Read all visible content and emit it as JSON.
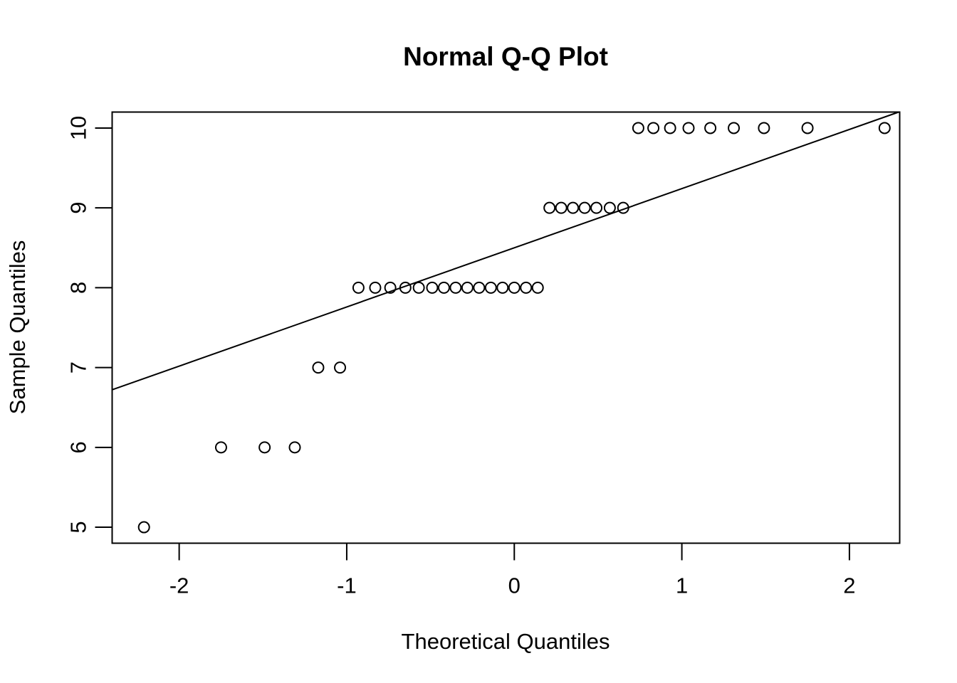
{
  "chart_data": {
    "type": "scatter",
    "title": "Normal Q-Q Plot",
    "xlabel": "Theoretical Quantiles",
    "ylabel": "Sample Quantiles",
    "xlim": [
      -2.4,
      2.3
    ],
    "ylim": [
      4.8,
      10.2
    ],
    "x_ticks": [
      -2,
      -1,
      0,
      1,
      2
    ],
    "x_tick_labels": [
      "-2",
      "-1",
      "0",
      "1",
      "2"
    ],
    "y_ticks": [
      5,
      6,
      7,
      8,
      9,
      10
    ],
    "y_tick_labels": [
      "5",
      "6",
      "7",
      "8",
      "9",
      "10"
    ],
    "grid": false,
    "legend": "none",
    "point_color": "#000000",
    "series": [
      {
        "points": [
          {
            "x": -2.21,
            "y": 5
          },
          {
            "x": -1.75,
            "y": 6
          },
          {
            "x": -1.49,
            "y": 6
          },
          {
            "x": -1.31,
            "y": 6
          },
          {
            "x": -1.17,
            "y": 7
          },
          {
            "x": -1.04,
            "y": 7
          },
          {
            "x": -0.93,
            "y": 8
          },
          {
            "x": -0.83,
            "y": 8
          },
          {
            "x": -0.74,
            "y": 8
          },
          {
            "x": -0.65,
            "y": 8
          },
          {
            "x": -0.57,
            "y": 8
          },
          {
            "x": -0.49,
            "y": 8
          },
          {
            "x": -0.42,
            "y": 8
          },
          {
            "x": -0.35,
            "y": 8
          },
          {
            "x": -0.28,
            "y": 8
          },
          {
            "x": -0.21,
            "y": 8
          },
          {
            "x": -0.14,
            "y": 8
          },
          {
            "x": -0.07,
            "y": 8
          },
          {
            "x": 0.0,
            "y": 8
          },
          {
            "x": 0.07,
            "y": 8
          },
          {
            "x": 0.14,
            "y": 8
          },
          {
            "x": 0.21,
            "y": 9
          },
          {
            "x": 0.28,
            "y": 9
          },
          {
            "x": 0.35,
            "y": 9
          },
          {
            "x": 0.42,
            "y": 9
          },
          {
            "x": 0.49,
            "y": 9
          },
          {
            "x": 0.57,
            "y": 9
          },
          {
            "x": 0.65,
            "y": 9
          },
          {
            "x": 0.74,
            "y": 10
          },
          {
            "x": 0.83,
            "y": 10
          },
          {
            "x": 0.93,
            "y": 10
          },
          {
            "x": 1.04,
            "y": 10
          },
          {
            "x": 1.17,
            "y": 10
          },
          {
            "x": 1.31,
            "y": 10
          },
          {
            "x": 1.49,
            "y": 10
          },
          {
            "x": 1.75,
            "y": 10
          },
          {
            "x": 2.21,
            "y": 10
          }
        ]
      }
    ],
    "reference_line": {
      "intercept": 8.5,
      "slope": 0.741
    }
  }
}
